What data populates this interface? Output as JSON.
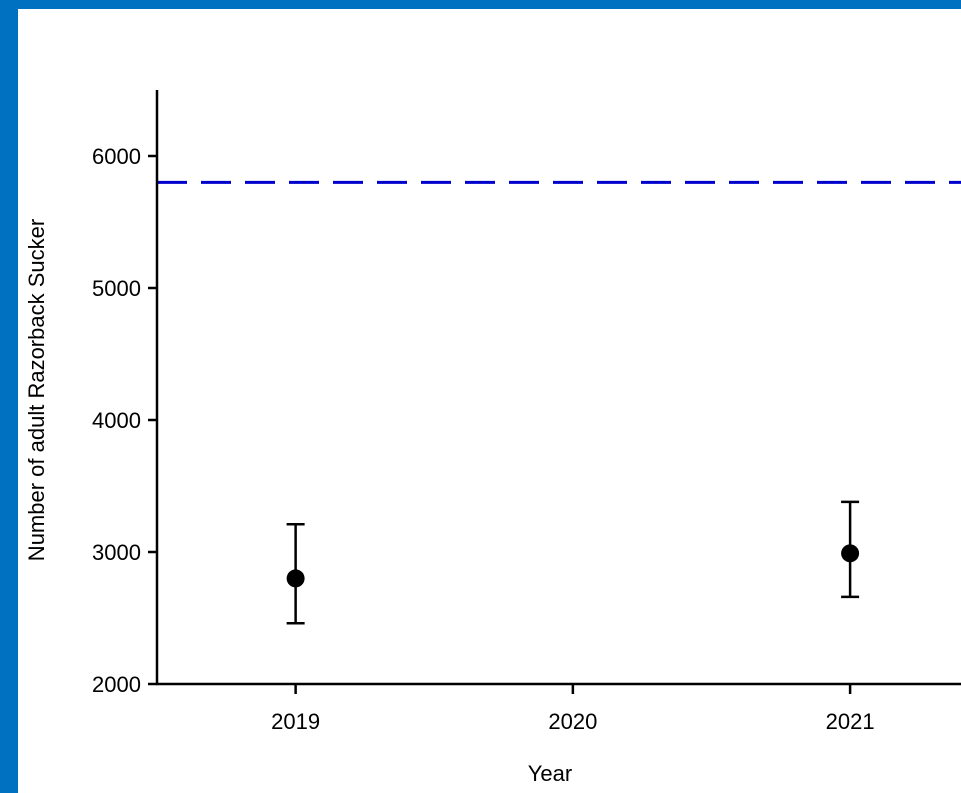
{
  "chart_data": {
    "type": "scatter",
    "xlabel": "Year",
    "ylabel": "Number of adult Razorback Sucker",
    "x_ticks": [
      "2019",
      "2020",
      "2021"
    ],
    "y_ticks": [
      2000,
      3000,
      4000,
      5000,
      6000
    ],
    "xlim": [
      2018.5,
      2021.4
    ],
    "ylim": [
      2000,
      6500
    ],
    "grid": false,
    "series": [
      {
        "marker": "filled-circle",
        "color": "#000000",
        "points": [
          {
            "x": 2019,
            "y": 2800,
            "lower": 2460,
            "upper": 3210
          },
          {
            "x": 2021,
            "y": 2990,
            "lower": 2660,
            "upper": 3380
          }
        ]
      }
    ],
    "reference_line": {
      "y": 5800,
      "style": "dashed",
      "color": "#0000cc"
    }
  },
  "colors": {
    "border": "#0070c0",
    "background": "#ffffff",
    "reference": "#0000cc",
    "marker": "#000000"
  }
}
